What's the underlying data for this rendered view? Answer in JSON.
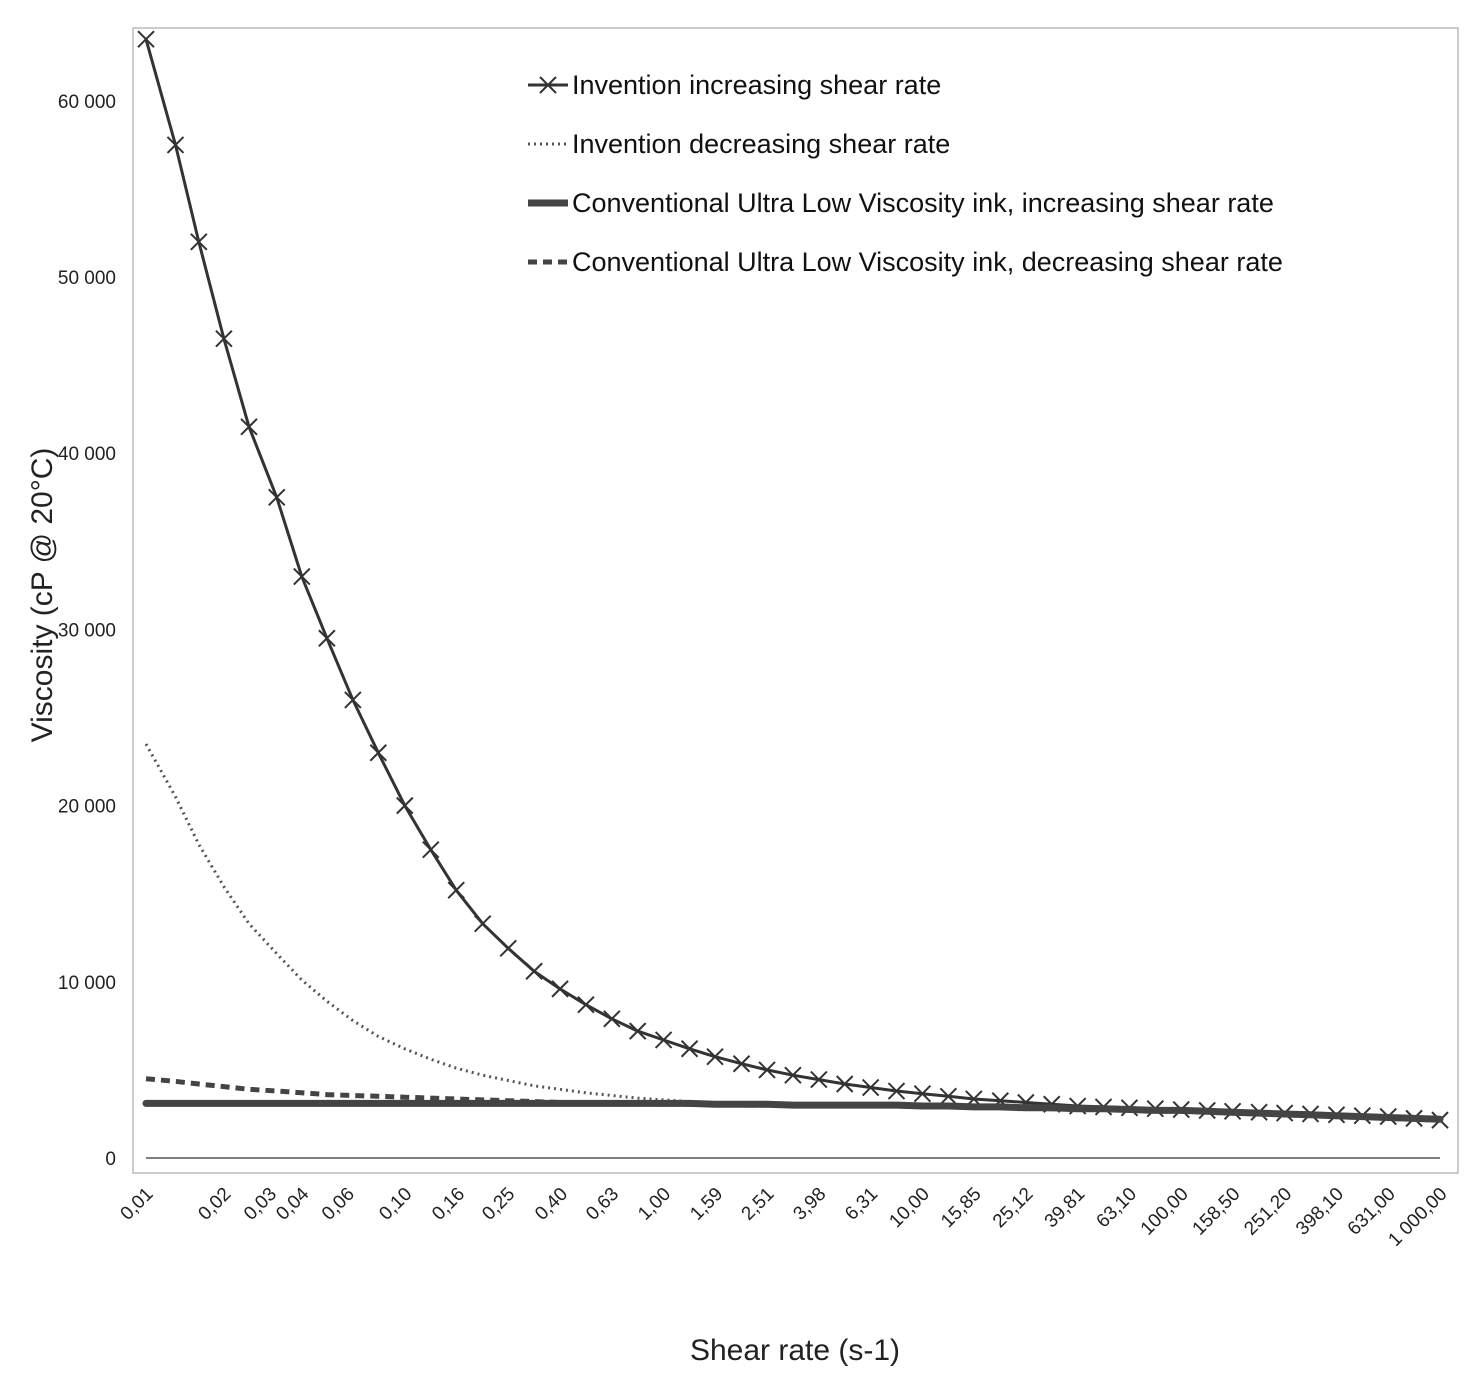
{
  "chart_data": {
    "type": "line",
    "title": "",
    "xlabel": "Shear rate (s-1)",
    "ylabel": "Viscosity (cP @ 20°C)",
    "ylim": [
      0,
      63000
    ],
    "yticks": [
      0,
      10000,
      20000,
      30000,
      40000,
      50000,
      60000
    ],
    "ytick_labels": [
      "0",
      "10 000",
      "20 000",
      "30 000",
      "40 000",
      "50 000",
      "60 000"
    ],
    "x_scale": "log",
    "xlim": [
      0.01,
      1000
    ],
    "xticks": [
      0.01,
      0.02,
      0.03,
      0.04,
      0.06,
      0.1,
      0.16,
      0.25,
      0.4,
      0.63,
      1.0,
      1.59,
      2.51,
      3.98,
      6.31,
      10.0,
      15.85,
      25.12,
      39.81,
      63.1,
      100.0,
      158.5,
      251.2,
      398.1,
      631.0,
      1000.0
    ],
    "xtick_labels": [
      "0,01",
      "0,02",
      "0,03",
      "0,04",
      "0,06",
      "0,10",
      "0,16",
      "0,25",
      "0,40",
      "0,63",
      "1,00",
      "1,59",
      "2,51",
      "3,98",
      "6,31",
      "10,00",
      "15,85",
      "25,12",
      "39,81",
      "63,10",
      "100,00",
      "158,50",
      "251,20",
      "398,10",
      "631,00",
      "1 000,00"
    ],
    "grid": false,
    "legend_position": "top-center",
    "x": [
      0.01,
      0.013,
      0.016,
      0.02,
      0.025,
      0.032,
      0.04,
      0.05,
      0.063,
      0.079,
      0.1,
      0.126,
      0.158,
      0.2,
      0.251,
      0.316,
      0.398,
      0.501,
      0.631,
      0.794,
      1.0,
      1.26,
      1.58,
      2.0,
      2.51,
      3.16,
      3.98,
      5.01,
      6.31,
      7.94,
      10.0,
      12.6,
      15.8,
      20.0,
      25.1,
      31.6,
      39.8,
      50.1,
      63.1,
      79.4,
      100,
      126,
      158,
      200,
      251,
      316,
      398,
      501,
      631,
      794,
      1000
    ],
    "series": [
      {
        "name": "Invention increasing shear rate",
        "style": "solid-x-markers",
        "color": "#333333",
        "values": [
          63500,
          57500,
          52000,
          46500,
          41500,
          37500,
          33000,
          29500,
          26000,
          23000,
          20000,
          17500,
          15200,
          13300,
          11900,
          10600,
          9600,
          8700,
          7900,
          7200,
          6700,
          6200,
          5750,
          5350,
          5000,
          4700,
          4450,
          4200,
          4000,
          3800,
          3650,
          3500,
          3350,
          3250,
          3150,
          3050,
          2950,
          2900,
          2850,
          2800,
          2750,
          2700,
          2650,
          2600,
          2550,
          2500,
          2450,
          2400,
          2350,
          2250,
          2150
        ]
      },
      {
        "name": "Invention decreasing shear rate",
        "style": "dotted",
        "color": "#555555",
        "values": [
          23500,
          20500,
          17800,
          15400,
          13300,
          11600,
          10100,
          8900,
          7800,
          6900,
          6200,
          5600,
          5100,
          4700,
          4400,
          4100,
          3900,
          3700,
          3550,
          3400,
          3300,
          3200,
          3150,
          3100,
          3050,
          3050,
          3000,
          3000,
          3000,
          3000,
          3000,
          3000,
          3000,
          2950,
          2950,
          2900,
          2850,
          2850,
          2800,
          2750,
          2700,
          2650,
          2600,
          2550,
          2500,
          2450,
          2400,
          2350,
          2300,
          2250,
          2200
        ]
      },
      {
        "name": "Conventional Ultra Low Viscosity ink, increasing shear rate",
        "style": "solid-thick",
        "color": "#444444",
        "values": [
          3100,
          3100,
          3100,
          3100,
          3100,
          3100,
          3100,
          3100,
          3100,
          3100,
          3100,
          3100,
          3100,
          3100,
          3100,
          3100,
          3100,
          3100,
          3100,
          3100,
          3100,
          3100,
          3050,
          3050,
          3050,
          3000,
          3000,
          3000,
          3000,
          3000,
          2950,
          2950,
          2900,
          2900,
          2850,
          2850,
          2800,
          2800,
          2750,
          2700,
          2700,
          2650,
          2600,
          2550,
          2500,
          2450,
          2400,
          2350,
          2300,
          2250,
          2200
        ]
      },
      {
        "name": "Conventional Ultra Low Viscosity ink, decreasing shear rate",
        "style": "dashed",
        "color": "#444444",
        "values": [
          4500,
          4350,
          4200,
          4050,
          3900,
          3800,
          3700,
          3600,
          3550,
          3500,
          3450,
          3400,
          3350,
          3300,
          3250,
          3200,
          3150,
          3150,
          3100,
          3100,
          3050,
          3050,
          3050,
          3000,
          3000,
          3000,
          3000,
          3000,
          2950,
          2950,
          2950,
          2900,
          2900,
          2850,
          2850,
          2800,
          2800,
          2750,
          2750,
          2700,
          2650,
          2600,
          2550,
          2500,
          2450,
          2400,
          2350,
          2300,
          2250,
          2200,
          2150
        ]
      }
    ]
  }
}
